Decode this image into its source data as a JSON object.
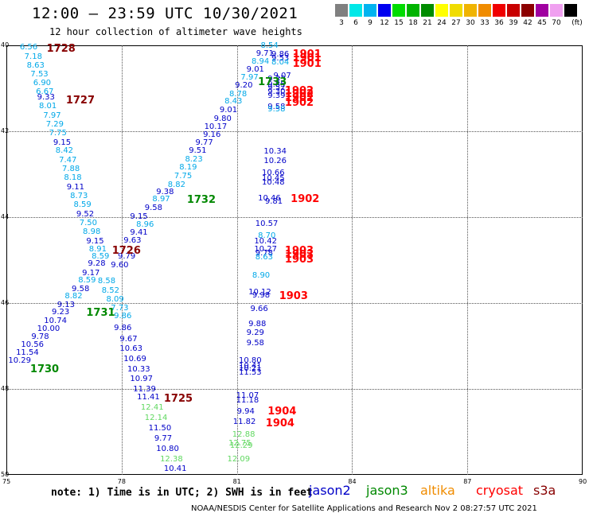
{
  "title": "12:00 — 23:59 UTC 10/30/2021",
  "subtitle": "12 hour collection of altimeter wave heights",
  "color_scale": {
    "swatches": [
      "#808080",
      "#00e8e8",
      "#00b4f0",
      "#0000f0",
      "#00dc00",
      "#00b400",
      "#008c00",
      "#ffff00",
      "#f0dc00",
      "#f0b400",
      "#f08c00",
      "#f00000",
      "#c80000",
      "#8c0000",
      "#a000a0",
      "#f0a0f0",
      "#000000"
    ],
    "ticks": [
      "3",
      "6",
      "9",
      "12",
      "15",
      "18",
      "21",
      "24",
      "27",
      "30",
      "33",
      "36",
      "39",
      "42",
      "45",
      "70"
    ],
    "unit": "(ft)"
  },
  "map_bounds": {
    "lon_min": 75,
    "lon_max": 90,
    "lat_min": 40,
    "lat_max": 50
  },
  "x_ticks": [
    "75",
    "78",
    "81",
    "84",
    "87",
    "90"
  ],
  "y_ticks": [
    "40",
    "42",
    "44",
    "46",
    "48",
    "50"
  ],
  "colors": {
    "jason2": "#0000c8",
    "jason3": "#008800",
    "altika": "#f08c00",
    "cryosat": "#ff0000",
    "s3a": "#880000",
    "cyan": "#00a8e8",
    "lightgreen": "#60d860"
  },
  "legend": [
    {
      "label": "jason2",
      "color": "jason2"
    },
    {
      "label": "jason3",
      "color": "jason3"
    },
    {
      "label": "altika",
      "color": "altika"
    },
    {
      "label": "cryosat",
      "color": "cryosat"
    },
    {
      "label": "s3a",
      "color": "s3a"
    }
  ],
  "note": "note: 1) Time is in UTC; 2) SWH is in feet",
  "credit": "NOAA/NESDIS Center for Satellite Applications and Research   Nov  2 08:27:57 UTC 2021",
  "wave_values": [
    {
      "t": "6.56",
      "lon": 75.35,
      "lat": 40.06,
      "c": "cyan"
    },
    {
      "t": "7.18",
      "lon": 75.47,
      "lat": 40.28,
      "c": "cyan"
    },
    {
      "t": "8.63",
      "lon": 75.53,
      "lat": 40.48,
      "c": "cyan"
    },
    {
      "t": "7.53",
      "lon": 75.63,
      "lat": 40.69,
      "c": "cyan"
    },
    {
      "t": "6.90",
      "lon": 75.7,
      "lat": 40.89,
      "c": "cyan"
    },
    {
      "t": "6.67",
      "lon": 75.77,
      "lat": 41.1,
      "c": "cyan"
    },
    {
      "t": "9.33",
      "lon": 75.8,
      "lat": 41.22,
      "c": "jason2"
    },
    {
      "t": "8.01",
      "lon": 75.85,
      "lat": 41.43,
      "c": "cyan"
    },
    {
      "t": "7.97",
      "lon": 75.96,
      "lat": 41.64,
      "c": "cyan"
    },
    {
      "t": "7.29",
      "lon": 76.03,
      "lat": 41.85,
      "c": "cyan"
    },
    {
      "t": "7.75",
      "lon": 76.11,
      "lat": 42.05,
      "c": "cyan"
    },
    {
      "t": "9.15",
      "lon": 76.22,
      "lat": 42.27,
      "c": "jason2"
    },
    {
      "t": "8.42",
      "lon": 76.28,
      "lat": 42.47,
      "c": "cyan"
    },
    {
      "t": "7.47",
      "lon": 76.37,
      "lat": 42.68,
      "c": "cyan"
    },
    {
      "t": "7.88",
      "lon": 76.45,
      "lat": 42.89,
      "c": "cyan"
    },
    {
      "t": "8.18",
      "lon": 76.5,
      "lat": 43.1,
      "c": "cyan"
    },
    {
      "t": "9.11",
      "lon": 76.57,
      "lat": 43.31,
      "c": "jason2"
    },
    {
      "t": "8.73",
      "lon": 76.66,
      "lat": 43.52,
      "c": "cyan"
    },
    {
      "t": "8.59",
      "lon": 76.75,
      "lat": 43.73,
      "c": "cyan"
    },
    {
      "t": "9.52",
      "lon": 76.82,
      "lat": 43.94,
      "c": "jason2"
    },
    {
      "t": "7.50",
      "lon": 76.9,
      "lat": 44.15,
      "c": "cyan"
    },
    {
      "t": "8.98",
      "lon": 76.99,
      "lat": 44.36,
      "c": "cyan"
    },
    {
      "t": "9.15",
      "lon": 77.08,
      "lat": 44.57,
      "c": "jason2"
    },
    {
      "t": "8.91",
      "lon": 77.15,
      "lat": 44.75,
      "c": "cyan"
    },
    {
      "t": "8.59",
      "lon": 77.22,
      "lat": 44.93,
      "c": "cyan"
    },
    {
      "t": "9.28",
      "lon": 77.12,
      "lat": 45.1,
      "c": "jason2"
    },
    {
      "t": "9.17",
      "lon": 76.97,
      "lat": 45.31,
      "c": "jason2"
    },
    {
      "t": "8.59",
      "lon": 76.87,
      "lat": 45.48,
      "c": "cyan"
    },
    {
      "t": "9.58",
      "lon": 76.7,
      "lat": 45.68,
      "c": "jason2"
    },
    {
      "t": "8.82",
      "lon": 76.52,
      "lat": 45.86,
      "c": "cyan"
    },
    {
      "t": "9.13",
      "lon": 76.32,
      "lat": 46.05,
      "c": "jason2"
    },
    {
      "t": "9.23",
      "lon": 76.18,
      "lat": 46.23,
      "c": "jason2"
    },
    {
      "t": "10.74",
      "lon": 75.98,
      "lat": 46.42,
      "c": "jason2"
    },
    {
      "t": "10.00",
      "lon": 75.8,
      "lat": 46.61,
      "c": "jason2"
    },
    {
      "t": "9.78",
      "lon": 75.65,
      "lat": 46.79,
      "c": "jason2"
    },
    {
      "t": "10.56",
      "lon": 75.38,
      "lat": 46.98,
      "c": "jason2"
    },
    {
      "t": "11.54",
      "lon": 75.25,
      "lat": 47.17,
      "c": "jason2"
    },
    {
      "t": "10.29",
      "lon": 75.05,
      "lat": 47.35,
      "c": "jason2"
    },
    {
      "t": "8.54",
      "lon": 81.62,
      "lat": 40.02,
      "c": "cyan"
    },
    {
      "t": "9.71",
      "lon": 81.5,
      "lat": 40.21,
      "c": "jason2"
    },
    {
      "t": "8.94",
      "lon": 81.38,
      "lat": 40.38,
      "c": "cyan"
    },
    {
      "t": "9.01",
      "lon": 81.25,
      "lat": 40.58,
      "c": "jason2"
    },
    {
      "t": "7.97",
      "lon": 81.1,
      "lat": 40.76,
      "c": "cyan"
    },
    {
      "t": "9.20",
      "lon": 80.95,
      "lat": 40.95,
      "c": "jason2"
    },
    {
      "t": "8.78",
      "lon": 80.8,
      "lat": 41.15,
      "c": "cyan"
    },
    {
      "t": "8.43",
      "lon": 80.68,
      "lat": 41.32,
      "c": "cyan"
    },
    {
      "t": "9.01",
      "lon": 80.55,
      "lat": 41.52,
      "c": "jason2"
    },
    {
      "t": "9.80",
      "lon": 80.4,
      "lat": 41.72,
      "c": "jason2"
    },
    {
      "t": "10.17",
      "lon": 80.15,
      "lat": 41.9,
      "c": "jason2"
    },
    {
      "t": "9.16",
      "lon": 80.12,
      "lat": 42.1,
      "c": "jason2"
    },
    {
      "t": "9.77",
      "lon": 79.92,
      "lat": 42.28,
      "c": "jason2"
    },
    {
      "t": "9.51",
      "lon": 79.75,
      "lat": 42.47,
      "c": "jason2"
    },
    {
      "t": "8.23",
      "lon": 79.65,
      "lat": 42.67,
      "c": "cyan"
    },
    {
      "t": "8.19",
      "lon": 79.5,
      "lat": 42.86,
      "c": "cyan"
    },
    {
      "t": "7.75",
      "lon": 79.37,
      "lat": 43.05,
      "c": "cyan"
    },
    {
      "t": "8.82",
      "lon": 79.2,
      "lat": 43.25,
      "c": "cyan"
    },
    {
      "t": "9.38",
      "lon": 78.9,
      "lat": 43.43,
      "c": "jason2"
    },
    {
      "t": "8.97",
      "lon": 78.8,
      "lat": 43.6,
      "c": "cyan"
    },
    {
      "t": "9.58",
      "lon": 78.6,
      "lat": 43.8,
      "c": "jason2"
    },
    {
      "t": "9.15",
      "lon": 78.22,
      "lat": 44.0,
      "c": "jason2"
    },
    {
      "t": "8.96",
      "lon": 78.38,
      "lat": 44.18,
      "c": "cyan"
    },
    {
      "t": "9.41",
      "lon": 78.22,
      "lat": 44.37,
      "c": "jason2"
    },
    {
      "t": "9.63",
      "lon": 78.05,
      "lat": 44.56,
      "c": "jason2"
    },
    {
      "t": "9.79",
      "lon": 77.9,
      "lat": 44.93,
      "c": "jason2"
    },
    {
      "t": "9.60",
      "lon": 77.72,
      "lat": 45.13,
      "c": "jason2"
    },
    {
      "t": "8.58",
      "lon": 77.38,
      "lat": 45.5,
      "c": "cyan"
    },
    {
      "t": "8.52",
      "lon": 77.48,
      "lat": 45.72,
      "c": "cyan"
    },
    {
      "t": "8.09",
      "lon": 77.6,
      "lat": 45.92,
      "c": "cyan"
    },
    {
      "t": "7.73",
      "lon": 77.72,
      "lat": 46.13,
      "c": "cyan"
    },
    {
      "t": "9.86",
      "lon": 77.8,
      "lat": 46.31,
      "c": "cyan"
    },
    {
      "t": "9.86",
      "lon": 77.8,
      "lat": 46.6,
      "c": "jason2"
    },
    {
      "t": "9.67",
      "lon": 77.95,
      "lat": 46.85,
      "c": "jason2"
    },
    {
      "t": "10.63",
      "lon": 77.95,
      "lat": 47.08,
      "c": "jason2"
    },
    {
      "t": "10.69",
      "lon": 78.05,
      "lat": 47.31,
      "c": "jason2"
    },
    {
      "t": "10.33",
      "lon": 78.15,
      "lat": 47.55,
      "c": "jason2"
    },
    {
      "t": "10.97",
      "lon": 78.22,
      "lat": 47.78,
      "c": "jason2"
    },
    {
      "t": "11.39",
      "lon": 78.3,
      "lat": 48.02,
      "c": "jason2"
    },
    {
      "t": "11.41",
      "lon": 78.4,
      "lat": 48.21,
      "c": "jason2"
    },
    {
      "t": "12.41",
      "lon": 78.5,
      "lat": 48.44,
      "c": "lightgreen"
    },
    {
      "t": "12.14",
      "lon": 78.6,
      "lat": 48.68,
      "c": "lightgreen"
    },
    {
      "t": "11.50",
      "lon": 78.7,
      "lat": 48.92,
      "c": "jason2"
    },
    {
      "t": "9.77",
      "lon": 78.85,
      "lat": 49.17,
      "c": "jason2"
    },
    {
      "t": "10.80",
      "lon": 78.9,
      "lat": 49.4,
      "c": "jason2"
    },
    {
      "t": "12.38",
      "lon": 79.0,
      "lat": 49.64,
      "c": "lightgreen"
    },
    {
      "t": "10.41",
      "lon": 79.1,
      "lat": 49.87,
      "c": "jason2"
    },
    {
      "t": "9.86",
      "lon": 81.9,
      "lat": 40.23,
      "c": "jason2"
    },
    {
      "t": "9.53",
      "lon": 81.9,
      "lat": 40.32,
      "c": "jason2"
    },
    {
      "t": "8.04",
      "lon": 81.9,
      "lat": 40.41,
      "c": "cyan"
    },
    {
      "t": "9.07",
      "lon": 81.95,
      "lat": 40.72,
      "c": "jason2"
    },
    {
      "t": "9.33",
      "lon": 81.8,
      "lat": 40.8,
      "c": "jason2"
    },
    {
      "t": "9.85",
      "lon": 81.8,
      "lat": 40.93,
      "c": "jason2"
    },
    {
      "t": "9.52",
      "lon": 81.8,
      "lat": 41.0,
      "c": "jason2"
    },
    {
      "t": "9.30",
      "lon": 81.8,
      "lat": 41.09,
      "c": "jason2"
    },
    {
      "t": "9.39",
      "lon": 81.8,
      "lat": 41.18,
      "c": "jason2"
    },
    {
      "t": "9.58",
      "lon": 81.8,
      "lat": 41.44,
      "c": "jason2"
    },
    {
      "t": "9.58",
      "lon": 81.8,
      "lat": 41.5,
      "c": "cyan"
    },
    {
      "t": "10.34",
      "lon": 81.7,
      "lat": 42.48,
      "c": "jason2"
    },
    {
      "t": "10.26",
      "lon": 81.7,
      "lat": 42.7,
      "c": "jason2"
    },
    {
      "t": "10.66",
      "lon": 81.65,
      "lat": 42.98,
      "c": "jason2"
    },
    {
      "t": "10.45",
      "lon": 81.65,
      "lat": 43.12,
      "c": "jason2"
    },
    {
      "t": "10.48",
      "lon": 81.65,
      "lat": 43.21,
      "c": "jason2"
    },
    {
      "t": "10.46",
      "lon": 81.55,
      "lat": 43.57,
      "c": "jason2"
    },
    {
      "t": "9.81",
      "lon": 81.73,
      "lat": 43.64,
      "c": "jason2"
    },
    {
      "t": "10.57",
      "lon": 81.48,
      "lat": 44.16,
      "c": "jason2"
    },
    {
      "t": "8.70",
      "lon": 81.55,
      "lat": 44.45,
      "c": "cyan"
    },
    {
      "t": "10.42",
      "lon": 81.45,
      "lat": 44.57,
      "c": "jason2"
    },
    {
      "t": "10.27",
      "lon": 81.45,
      "lat": 44.76,
      "c": "jason2"
    },
    {
      "t": "9.78",
      "lon": 81.48,
      "lat": 44.85,
      "c": "jason2"
    },
    {
      "t": "8.63",
      "lon": 81.48,
      "lat": 44.95,
      "c": "cyan"
    },
    {
      "t": "8.90",
      "lon": 81.4,
      "lat": 45.37,
      "c": "cyan"
    },
    {
      "t": "10.12",
      "lon": 81.3,
      "lat": 45.75,
      "c": "jason2"
    },
    {
      "t": "9.98",
      "lon": 81.4,
      "lat": 45.84,
      "c": "jason2"
    },
    {
      "t": "9.66",
      "lon": 81.35,
      "lat": 46.14,
      "c": "jason2"
    },
    {
      "t": "9.88",
      "lon": 81.3,
      "lat": 46.5,
      "c": "jason2"
    },
    {
      "t": "9.29",
      "lon": 81.25,
      "lat": 46.7,
      "c": "jason2"
    },
    {
      "t": "9.58",
      "lon": 81.25,
      "lat": 46.94,
      "c": "jason2"
    },
    {
      "t": "10.80",
      "lon": 81.05,
      "lat": 47.36,
      "c": "jason2"
    },
    {
      "t": "10.41",
      "lon": 81.05,
      "lat": 47.48,
      "c": "jason2"
    },
    {
      "t": "10.21",
      "lon": 81.05,
      "lat": 47.54,
      "c": "jason2"
    },
    {
      "t": "11.53",
      "lon": 81.05,
      "lat": 47.63,
      "c": "jason2"
    },
    {
      "t": "11.07",
      "lon": 80.98,
      "lat": 48.16,
      "c": "jason2"
    },
    {
      "t": "11.18",
      "lon": 80.98,
      "lat": 48.27,
      "c": "jason2"
    },
    {
      "t": "9.94",
      "lon": 81.0,
      "lat": 48.54,
      "c": "jason2"
    },
    {
      "t": "11.82",
      "lon": 80.9,
      "lat": 48.78,
      "c": "jason2"
    },
    {
      "t": "12.88",
      "lon": 80.88,
      "lat": 49.07,
      "c": "lightgreen"
    },
    {
      "t": "12.75",
      "lon": 80.78,
      "lat": 49.27,
      "c": "lightgreen"
    },
    {
      "t": "12.29",
      "lon": 80.82,
      "lat": 49.33,
      "c": "lightgreen"
    },
    {
      "t": "12.09",
      "lon": 80.75,
      "lat": 49.64,
      "c": "lightgreen"
    }
  ],
  "time_labels": [
    {
      "t": "1728",
      "lon": 76.05,
      "lat": 40.08,
      "c": "s3a"
    },
    {
      "t": "1727",
      "lon": 76.55,
      "lat": 41.28,
      "c": "s3a"
    },
    {
      "t": "1732",
      "lon": 79.7,
      "lat": 43.6,
      "c": "jason3"
    },
    {
      "t": "1726",
      "lon": 77.75,
      "lat": 44.78,
      "c": "s3a"
    },
    {
      "t": "1731",
      "lon": 77.08,
      "lat": 46.22,
      "c": "jason3"
    },
    {
      "t": "1730",
      "lon": 75.62,
      "lat": 47.54,
      "c": "jason3"
    },
    {
      "t": "1725",
      "lon": 79.1,
      "lat": 48.22,
      "c": "s3a"
    },
    {
      "t": "1901",
      "lon": 82.45,
      "lat": 40.21,
      "c": "cryosat"
    },
    {
      "t": "1901",
      "lon": 82.45,
      "lat": 40.3,
      "c": "cryosat"
    },
    {
      "t": "1901",
      "lon": 82.45,
      "lat": 40.43,
      "c": "cryosat"
    },
    {
      "t": "1733",
      "lon": 81.55,
      "lat": 40.85,
      "c": "jason3"
    },
    {
      "t": "1902",
      "lon": 82.25,
      "lat": 41.05,
      "c": "cryosat"
    },
    {
      "t": "1902",
      "lon": 82.25,
      "lat": 41.13,
      "c": "cryosat"
    },
    {
      "t": "1902",
      "lon": 82.25,
      "lat": 41.23,
      "c": "cryosat"
    },
    {
      "t": "1902",
      "lon": 82.25,
      "lat": 41.33,
      "c": "cryosat"
    },
    {
      "t": "1902",
      "lon": 82.4,
      "lat": 43.58,
      "c": "cryosat"
    },
    {
      "t": "1903",
      "lon": 82.25,
      "lat": 44.77,
      "c": "cryosat"
    },
    {
      "t": "1903",
      "lon": 82.25,
      "lat": 44.87,
      "c": "cryosat"
    },
    {
      "t": "1903",
      "lon": 82.25,
      "lat": 44.98,
      "c": "cryosat"
    },
    {
      "t": "1903",
      "lon": 82.1,
      "lat": 45.84,
      "c": "cryosat"
    },
    {
      "t": "1904",
      "lon": 81.8,
      "lat": 48.52,
      "c": "cryosat"
    },
    {
      "t": "1904",
      "lon": 81.75,
      "lat": 48.8,
      "c": "cryosat"
    }
  ]
}
